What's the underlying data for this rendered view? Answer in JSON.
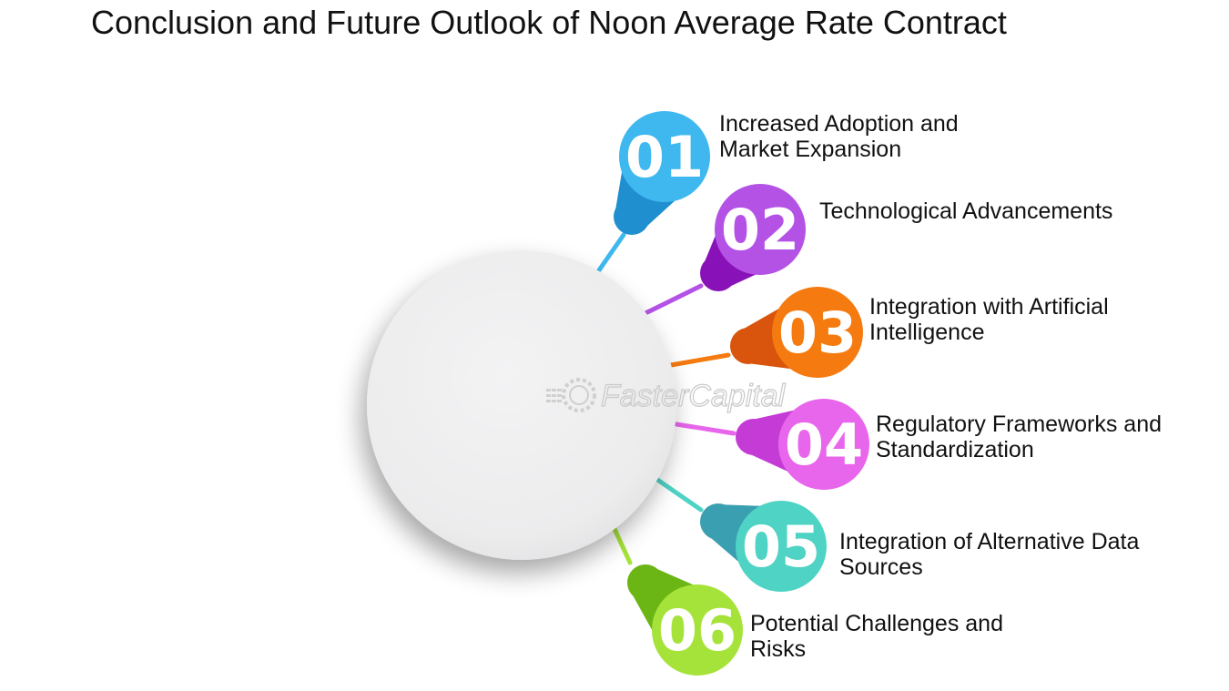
{
  "title": "Conclusion and Future Outlook of Noon Average Rate Contract",
  "watermark": "FasterCapital",
  "items": [
    {
      "num": "01",
      "lines": [
        "Increased Adoption and",
        "Market Expansion"
      ],
      "color": "#3fb8ef",
      "dark": "#1f8fd0"
    },
    {
      "num": "02",
      "lines": [
        "Technological Advancements"
      ],
      "color": "#b452e6",
      "dark": "#8812b8"
    },
    {
      "num": "03",
      "lines": [
        "Integration with Artificial",
        "Intelligence"
      ],
      "color": "#f57a10",
      "dark": "#d9540c"
    },
    {
      "num": "04",
      "lines": [
        "Regulatory Frameworks and",
        "Standardization"
      ],
      "color": "#e866ec",
      "dark": "#c43bd6"
    },
    {
      "num": "05",
      "lines": [
        "Integration of Alternative Data",
        "Sources"
      ],
      "color": "#4fd3c4",
      "dark": "#3a9fb0"
    },
    {
      "num": "06",
      "lines": [
        "Potential Challenges and",
        "Risks"
      ],
      "color": "#a6e33a",
      "dark": "#6bb514"
    }
  ]
}
